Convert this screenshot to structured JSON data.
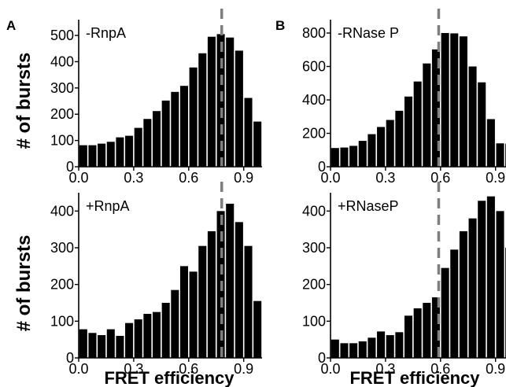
{
  "figure": {
    "panel_a": "A",
    "panel_b": "B",
    "ylabel_top": "# of bursts",
    "ylabel_bottom": "# of bursts",
    "xlabel_left": "FRET efficiency",
    "xlabel_right": "FRET efficiency"
  },
  "colors": {
    "bar": "#000000",
    "marker_line": "#7f7f7f",
    "axis": "#000000"
  },
  "chart_data": [
    {
      "type": "bar",
      "annotation": "-RnpA",
      "xlabel": "",
      "ylabel": "# of bursts",
      "xlim": [
        0.0,
        1.0
      ],
      "ylim": [
        0,
        560
      ],
      "xticks": [
        "0.0",
        "0.3",
        "0.6",
        "0.9"
      ],
      "yticks": [
        "0",
        "100",
        "200",
        "300",
        "400",
        "500"
      ],
      "bin_width": 0.05,
      "x": [
        0.025,
        0.075,
        0.125,
        0.175,
        0.225,
        0.275,
        0.325,
        0.375,
        0.425,
        0.475,
        0.525,
        0.575,
        0.625,
        0.675,
        0.725,
        0.775,
        0.825,
        0.875,
        0.925,
        0.975
      ],
      "values": [
        82,
        82,
        88,
        95,
        112,
        118,
        148,
        182,
        212,
        252,
        285,
        308,
        378,
        432,
        495,
        505,
        492,
        442,
        262,
        172
      ],
      "reference_line_x": 0.78
    },
    {
      "type": "bar",
      "annotation": "-RNase P",
      "xlabel": "",
      "ylabel": "",
      "xlim": [
        0.0,
        1.0
      ],
      "ylim": [
        0,
        880
      ],
      "xticks": [
        "0.0",
        "0.3",
        "0.6",
        "0.9"
      ],
      "yticks": [
        "0",
        "200",
        "400",
        "600",
        "800"
      ],
      "bin_width": 0.05,
      "x": [
        0.025,
        0.075,
        0.125,
        0.175,
        0.225,
        0.275,
        0.325,
        0.375,
        0.425,
        0.475,
        0.525,
        0.575,
        0.625,
        0.675,
        0.725,
        0.775,
        0.825,
        0.875,
        0.925,
        0.975
      ],
      "values": [
        112,
        115,
        125,
        155,
        195,
        238,
        280,
        335,
        420,
        510,
        618,
        702,
        800,
        798,
        780,
        600,
        505,
        285,
        140,
        138
      ],
      "reference_line_x": 0.59
    },
    {
      "type": "bar",
      "annotation": "+RnpA",
      "xlabel": "FRET efficiency",
      "ylabel": "# of bursts",
      "xlim": [
        0.0,
        1.0
      ],
      "ylim": [
        0,
        450
      ],
      "xticks": [
        "0.0",
        "0.3",
        "0.6",
        "0.9"
      ],
      "yticks": [
        "0",
        "100",
        "200",
        "300",
        "400"
      ],
      "bin_width": 0.05,
      "x": [
        0.025,
        0.075,
        0.125,
        0.175,
        0.225,
        0.275,
        0.325,
        0.375,
        0.425,
        0.475,
        0.525,
        0.575,
        0.625,
        0.675,
        0.725,
        0.775,
        0.825,
        0.875,
        0.925,
        0.975
      ],
      "values": [
        78,
        68,
        62,
        78,
        60,
        95,
        105,
        120,
        125,
        150,
        185,
        250,
        235,
        305,
        345,
        400,
        420,
        370,
        305,
        155
      ],
      "reference_line_x": 0.78
    },
    {
      "type": "bar",
      "annotation": "+RNaseP",
      "xlabel": "FRET efficiency",
      "ylabel": "",
      "xlim": [
        0.0,
        1.0
      ],
      "ylim": [
        0,
        450
      ],
      "xticks": [
        "0.0",
        "0.3",
        "0.6",
        "0.9"
      ],
      "yticks": [
        "0",
        "100",
        "200",
        "300",
        "400"
      ],
      "bin_width": 0.05,
      "x": [
        0.025,
        0.075,
        0.125,
        0.175,
        0.225,
        0.275,
        0.325,
        0.375,
        0.425,
        0.475,
        0.525,
        0.575,
        0.625,
        0.675,
        0.725,
        0.775,
        0.825,
        0.875,
        0.925,
        0.975
      ],
      "values": [
        50,
        40,
        40,
        45,
        55,
        72,
        62,
        70,
        115,
        135,
        150,
        165,
        245,
        295,
        345,
        380,
        428,
        440,
        400,
        300
      ],
      "reference_line_x": 0.59
    }
  ]
}
